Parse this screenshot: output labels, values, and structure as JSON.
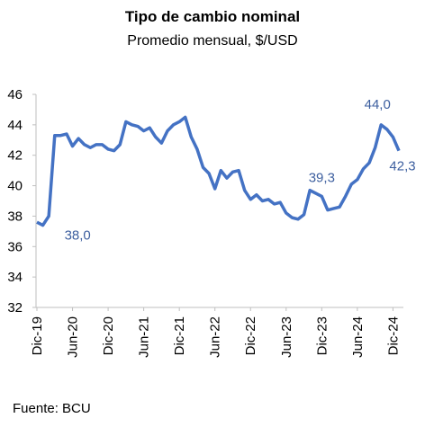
{
  "chart_data": {
    "type": "line",
    "title": "Tipo de cambio nominal",
    "subtitle": "Promedio mensual, $/USD",
    "source": "Fuente: BCU",
    "categories": [
      "Dic-19",
      null,
      null,
      null,
      null,
      null,
      "Jun-20",
      null,
      null,
      null,
      null,
      null,
      "Dic-20",
      null,
      null,
      null,
      null,
      null,
      "Jun-21",
      null,
      null,
      null,
      null,
      null,
      "Dic-21",
      null,
      null,
      null,
      null,
      null,
      "Jun-22",
      null,
      null,
      null,
      null,
      null,
      "Dic-22",
      null,
      null,
      null,
      null,
      null,
      "Jun-23",
      null,
      null,
      null,
      null,
      null,
      "Dic-23",
      null,
      null,
      null,
      null,
      null,
      "Jun-24",
      null,
      null,
      null,
      null,
      null,
      "Dic-24",
      null
    ],
    "series": [
      {
        "name": "Tipo de cambio nominal",
        "color": "#4472c4",
        "values": [
          37.6,
          37.4,
          38.0,
          43.3,
          43.3,
          43.4,
          42.6,
          43.1,
          42.7,
          42.5,
          42.7,
          42.7,
          42.4,
          42.3,
          42.7,
          44.2,
          44.0,
          43.9,
          43.6,
          43.8,
          43.2,
          42.8,
          43.6,
          44.0,
          44.2,
          44.5,
          43.2,
          42.4,
          41.2,
          40.8,
          39.8,
          41.0,
          40.5,
          40.9,
          41.0,
          39.7,
          39.1,
          39.4,
          39.0,
          39.1,
          38.8,
          38.9,
          38.2,
          37.9,
          37.8,
          38.1,
          39.7,
          39.5,
          39.3,
          38.4,
          38.5,
          38.6,
          39.3,
          40.1,
          40.4,
          41.1,
          41.5,
          42.5,
          44.0,
          43.7,
          43.2,
          42.3
        ],
        "value_labels": [
          null,
          null,
          "38,0",
          null,
          null,
          null,
          null,
          null,
          null,
          null,
          null,
          null,
          null,
          null,
          null,
          null,
          null,
          null,
          null,
          null,
          null,
          null,
          null,
          null,
          null,
          null,
          null,
          null,
          null,
          null,
          null,
          null,
          null,
          null,
          null,
          null,
          null,
          null,
          null,
          null,
          null,
          null,
          null,
          null,
          null,
          null,
          null,
          null,
          "39,3",
          null,
          null,
          null,
          null,
          null,
          null,
          null,
          null,
          null,
          "44,0",
          null,
          null,
          "42,3"
        ]
      }
    ],
    "ylim": [
      32,
      46
    ],
    "yticks": [
      32,
      34,
      36,
      38,
      40,
      42,
      44,
      46
    ],
    "grid": false
  }
}
